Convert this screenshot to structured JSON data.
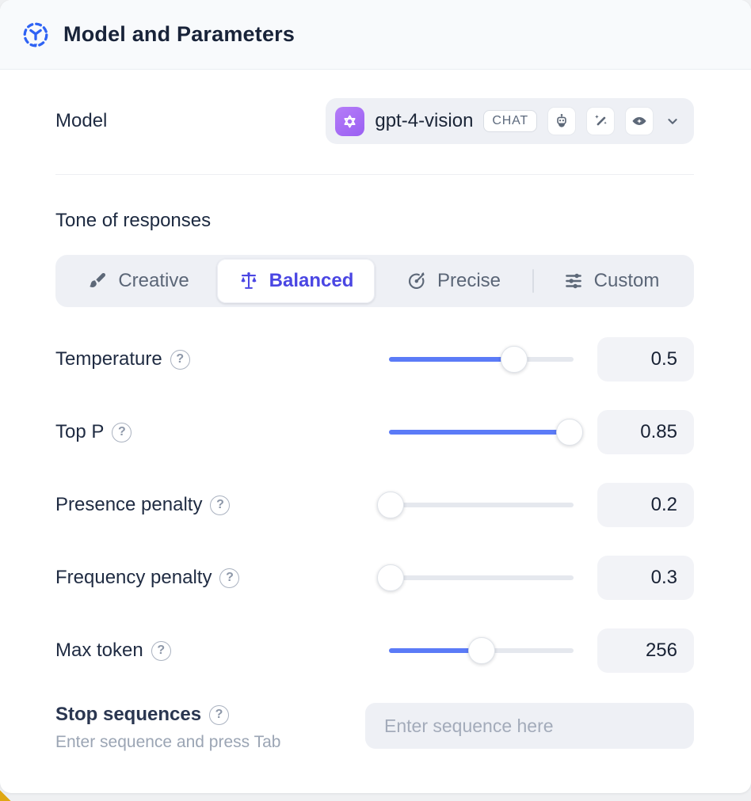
{
  "header": {
    "title": "Model and Parameters",
    "icon": "model-3d-icon"
  },
  "model": {
    "label": "Model",
    "selected_name": "gpt-4-vision",
    "type_badge": "CHAT",
    "provider_icon": "openai-logo",
    "capability_icons": [
      "robot-icon",
      "magic-wand-icon",
      "vision-eye-icon"
    ],
    "dropdown_icon": "chevron-down-icon"
  },
  "tone": {
    "heading": "Tone of responses",
    "options": [
      {
        "label": "Creative",
        "icon": "paintbrush-icon",
        "selected": false
      },
      {
        "label": "Balanced",
        "icon": "balance-scale-icon",
        "selected": true
      },
      {
        "label": "Precise",
        "icon": "target-icon",
        "selected": false
      },
      {
        "label": "Custom",
        "icon": "sliders-icon",
        "selected": false
      }
    ]
  },
  "parameters": [
    {
      "label": "Temperature",
      "value": "0.5",
      "percent": 68
    },
    {
      "label": "Top P",
      "value": "0.85",
      "percent": 98
    },
    {
      "label": "Presence penalty",
      "value": "0.2",
      "percent": 1
    },
    {
      "label": "Frequency penalty",
      "value": "0.3",
      "percent": 1
    },
    {
      "label": "Max token",
      "value": "256",
      "percent": 50
    }
  ],
  "help_icon": "?",
  "stop_sequences": {
    "label": "Stop sequences",
    "helper": "Enter sequence and press Tab",
    "placeholder": "Enter sequence here",
    "value": ""
  },
  "colors": {
    "accent_indigo": "#4a46e3",
    "slider_fill_blue": "#5b7bf7",
    "header_icon_blue": "#2f63f4",
    "provider_badge_purple": "#a16bf5",
    "control_background": "#eef0f5",
    "text_primary": "#1c2940",
    "text_muted": "#5b6677",
    "corner_accent_yellow": "#dfa712"
  }
}
